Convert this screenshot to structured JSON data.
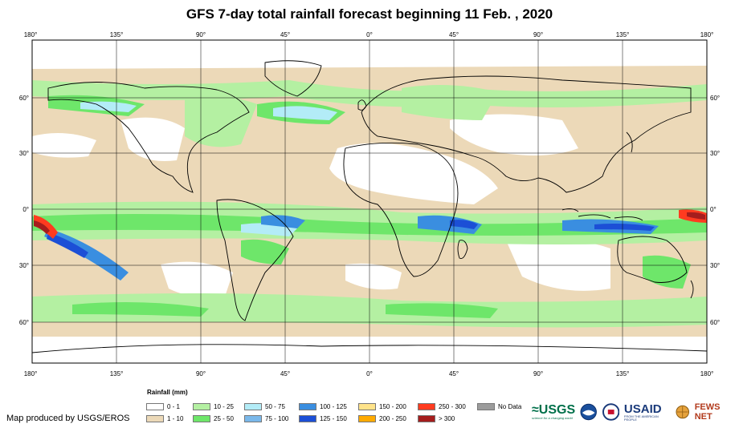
{
  "title": "GFS 7-day total rainfall forecast beginning 11 Feb. , 2020",
  "longitude_ticks": [
    "180°",
    "135°",
    "90°",
    "45°",
    "0°",
    "45°",
    "90°",
    "135°",
    "180°"
  ],
  "latitude_ticks": [
    "60°",
    "30°",
    "0°",
    "30°",
    "60°"
  ],
  "legend": {
    "title": "Rainfall (mm)",
    "items": [
      {
        "label": "0 - 1",
        "color": "#ffffff"
      },
      {
        "label": "1 - 10",
        "color": "#ecd9b8"
      },
      {
        "label": "10 - 25",
        "color": "#b4f0a2"
      },
      {
        "label": "25 - 50",
        "color": "#6ee66a"
      },
      {
        "label": "50 - 75",
        "color": "#b3ecf7"
      },
      {
        "label": "75 - 100",
        "color": "#7ab8ea"
      },
      {
        "label": "100 - 125",
        "color": "#3a8ee0"
      },
      {
        "label": "125 - 150",
        "color": "#1c4fd6"
      },
      {
        "label": "150 - 200",
        "color": "#ffe38a"
      },
      {
        "label": "200 - 250",
        "color": "#ffaa00"
      },
      {
        "label": "250 - 300",
        "color": "#ff3b1f"
      },
      {
        "label": "> 300",
        "color": "#a51d1d"
      },
      {
        "label": "No Data",
        "color": "#9c9c9c"
      }
    ]
  },
  "credit": "Map produced by USGS/EROS",
  "logos": {
    "usgs": "≈USGS",
    "usgs_tagline": "science for a changing world",
    "usaid": "USAID",
    "usaid_tagline": "FROM THE AMERICAN PEOPLE",
    "fews": "FEWS NET"
  }
}
